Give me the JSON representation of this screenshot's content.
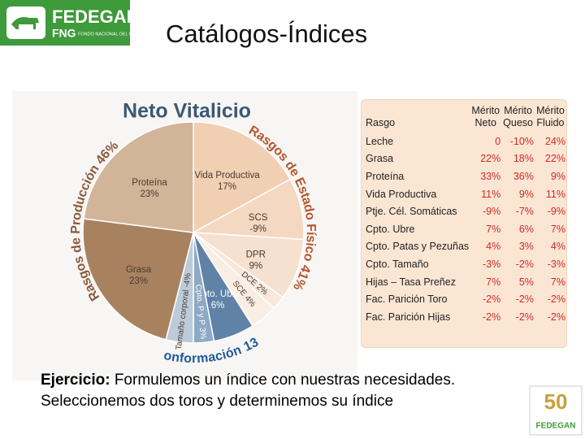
{
  "header": {
    "logo_name": "FEDEGAN",
    "logo_fng": "FNG",
    "logo_fng_full": "FONDO NACIONAL DEL GANADO",
    "title": "Catálogos-Índices"
  },
  "chart_data": {
    "type": "pie",
    "title": "Neto Vitalicio",
    "categories": [
      "Vida Productiva",
      "SCS",
      "DPR",
      "DCE",
      "SCE",
      "Cpto. Ubre",
      "Cpto. P y P",
      "Tamaño corporal",
      "Grasa",
      "Proteína"
    ],
    "values": [
      17,
      -9,
      9,
      2,
      4,
      6,
      3,
      -4,
      23,
      23
    ],
    "value_labels": [
      "17%",
      "-9%",
      "9%",
      "2%",
      "4%",
      "6%",
      "3%",
      "-4%",
      "23%",
      "23%"
    ],
    "colors": [
      "#f1cfb3",
      "#f4d8c2",
      "#f6e0cf",
      "#f8e7da",
      "#faeee4",
      "#5f82a6",
      "#8ea9c4",
      "#bccbd9",
      "#a8825f",
      "#d2b498"
    ],
    "groups": [
      {
        "name": "Rasgos de Estado Físico",
        "value": 41,
        "value_label": "41%",
        "color": "#b5562e"
      },
      {
        "name": "Conformación",
        "value": 13,
        "value_label": "13%",
        "color": "#1f5a99"
      },
      {
        "name": "Rasgos de Producción",
        "value": 46,
        "value_label": "46%",
        "color": "#8b5a3c"
      }
    ]
  },
  "table": {
    "header": [
      "Rasgo",
      "Mérito Neto",
      "Mérito Queso",
      "Mérito Fluido"
    ],
    "rows": [
      [
        "Leche",
        "0",
        "-10%",
        "24%"
      ],
      [
        "Grasa",
        "22%",
        "18%",
        "22%"
      ],
      [
        "Proteína",
        "33%",
        "36%",
        "9%"
      ],
      [
        "Vida Productiva",
        "11%",
        "9%",
        "11%"
      ],
      [
        "Ptje. Cél. Somáticas",
        "-9%",
        "-7%",
        "-9%"
      ],
      [
        "Cpto. Ubre",
        "7%",
        "6%",
        "7%"
      ],
      [
        "Cpto. Patas y Pezuñas",
        "4%",
        "3%",
        "4%"
      ],
      [
        "Cpto. Tamaño",
        "-3%",
        "-2%",
        "-3%"
      ],
      [
        "Hijas – Tasa Preñez",
        "7%",
        "5%",
        "7%"
      ],
      [
        "Fac. Parición Toro",
        "-2%",
        "-2%",
        "-2%"
      ],
      [
        "Fac. Parición Hijas",
        "-2%",
        "-2%",
        "-2%"
      ]
    ]
  },
  "footer": {
    "exercise_label": "Ejercicio:",
    "exercise_text": "Formulemos un índice con nuestras necesidades.",
    "line2": "Seleccionemos dos toros y determinemos su índice",
    "logo_number": "50",
    "logo_name": "FEDEGAN"
  }
}
